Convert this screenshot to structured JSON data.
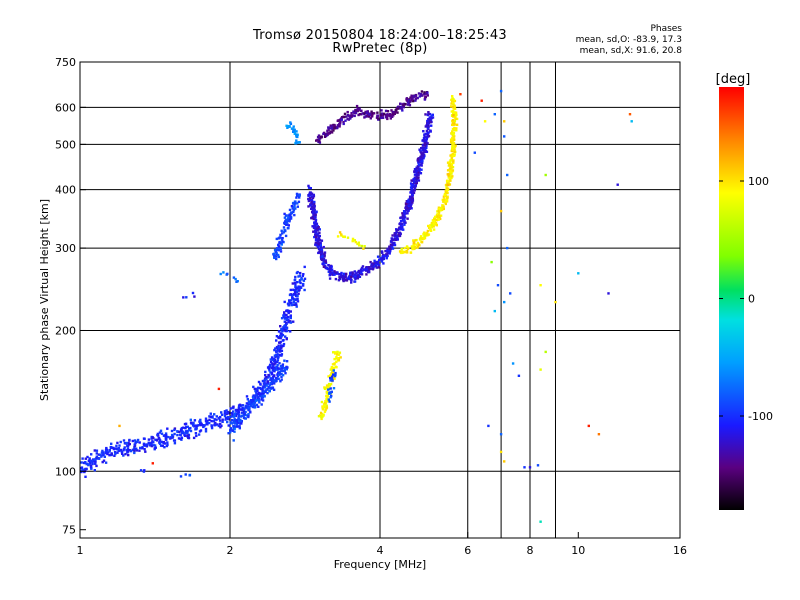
{
  "header": {
    "title": "Tromsø 20150804 18:24:00–18:25:43",
    "subtitle": "RwPretec (8p)"
  },
  "phase_info": {
    "label": "Phases",
    "o_line": "mean, sd,O: -83.9, 17.3",
    "x_line": "mean, sd,X:  91.6, 20.8"
  },
  "colorbar": {
    "unit": "[deg]",
    "tick_labels": [
      "100",
      "0",
      "-100"
    ],
    "tick_values": [
      100,
      0,
      -100
    ],
    "range": [
      -180,
      180
    ]
  },
  "chart_data": {
    "type": "scatter",
    "xlabel": "Frequency [MHz]",
    "ylabel": "Stationary phase Virtual Height [km]",
    "x_scale": "log",
    "y_scale": "log",
    "xlim": [
      1,
      16
    ],
    "ylim": [
      72,
      750
    ],
    "x_ticks": [
      1,
      2,
      4,
      6,
      8,
      10,
      16
    ],
    "x_tick_labels": [
      "1",
      "2",
      "4",
      "6",
      "8",
      "10",
      "16"
    ],
    "y_ticks": [
      75,
      100,
      200,
      300,
      400,
      500,
      600,
      750
    ],
    "y_tick_labels": [
      "75",
      "100",
      "200",
      "300",
      "400",
      "500",
      "600",
      "750"
    ],
    "grid": true,
    "grid_x": [
      2,
      4,
      6,
      7,
      8,
      9
    ],
    "grid_y": [
      100,
      200,
      300,
      400,
      500,
      600
    ],
    "color_by": "phase [deg]",
    "traces": [
      {
        "points": [
          [
            1.0,
            100
          ],
          [
            1.05,
            104
          ],
          [
            1.1,
            108
          ],
          [
            1.15,
            110
          ],
          [
            1.2,
            112
          ],
          [
            1.3,
            113
          ],
          [
            1.4,
            115
          ],
          [
            1.5,
            118
          ],
          [
            1.6,
            121
          ],
          [
            1.7,
            124
          ],
          [
            1.8,
            127
          ],
          [
            1.9,
            129
          ],
          [
            2.0,
            132
          ],
          [
            2.1,
            136
          ],
          [
            2.2,
            140
          ],
          [
            2.3,
            148
          ],
          [
            2.4,
            158
          ],
          [
            2.45,
            168
          ],
          [
            2.5,
            180
          ],
          [
            2.55,
            195
          ],
          [
            2.6,
            210
          ],
          [
            2.65,
            225
          ],
          [
            2.7,
            240
          ],
          [
            2.75,
            252
          ],
          [
            2.8,
            262
          ]
        ],
        "phase": -105,
        "spread": 0.06,
        "dens": 7
      },
      {
        "points": [
          [
            2.0,
            120
          ],
          [
            2.1,
            130
          ],
          [
            2.2,
            138
          ],
          [
            2.3,
            145
          ],
          [
            2.4,
            150
          ],
          [
            2.5,
            160
          ],
          [
            2.6,
            170
          ]
        ],
        "phase": -95,
        "spread": 0.05,
        "dens": 6
      },
      {
        "points": [
          [
            2.45,
            285
          ],
          [
            2.5,
            300
          ],
          [
            2.55,
            320
          ],
          [
            2.6,
            340
          ],
          [
            2.7,
            370
          ],
          [
            2.75,
            390
          ]
        ],
        "phase": -95,
        "spread": 0.04,
        "dens": 5
      },
      {
        "points": [
          [
            2.6,
            560
          ],
          [
            2.7,
            530
          ],
          [
            2.75,
            500
          ]
        ],
        "phase": -60,
        "spread": 0.03,
        "dens": 4
      },
      {
        "points": [
          [
            2.9,
            400
          ],
          [
            2.95,
            350
          ],
          [
            3.0,
            310
          ],
          [
            3.1,
            280
          ],
          [
            3.2,
            265
          ],
          [
            3.4,
            258
          ],
          [
            3.6,
            262
          ],
          [
            3.8,
            270
          ],
          [
            4.0,
            282
          ],
          [
            4.2,
            300
          ],
          [
            4.4,
            330
          ],
          [
            4.6,
            380
          ],
          [
            4.8,
            450
          ],
          [
            4.95,
            520
          ],
          [
            5.05,
            580
          ]
        ],
        "phase": -120,
        "spread": 0.035,
        "dens": 8
      },
      {
        "points": [
          [
            3.0,
            510
          ],
          [
            3.2,
            540
          ],
          [
            3.4,
            570
          ],
          [
            3.6,
            590
          ],
          [
            3.75,
            580
          ],
          [
            4.2,
            575
          ],
          [
            4.5,
            615
          ],
          [
            4.8,
            635
          ],
          [
            5.0,
            640
          ]
        ],
        "phase": -140,
        "spread": 0.03,
        "dens": 6
      },
      {
        "points": [
          [
            3.3,
            320
          ],
          [
            3.5,
            315
          ],
          [
            3.7,
            300
          ]
        ],
        "phase": 90,
        "spread": 0.02,
        "dens": 2
      },
      {
        "points": [
          [
            4.4,
            295
          ],
          [
            4.6,
            300
          ],
          [
            4.8,
            310
          ],
          [
            5.0,
            325
          ],
          [
            5.2,
            345
          ],
          [
            5.4,
            375
          ],
          [
            5.5,
            420
          ],
          [
            5.6,
            480
          ],
          [
            5.65,
            560
          ],
          [
            5.6,
            630
          ]
        ],
        "phase": 95,
        "spread": 0.03,
        "dens": 6
      },
      {
        "points": [
          [
            3.05,
            130
          ],
          [
            3.1,
            140
          ],
          [
            3.15,
            150
          ],
          [
            3.2,
            160
          ],
          [
            3.25,
            170
          ],
          [
            3.3,
            180
          ]
        ],
        "phase": 90,
        "spread": 0.04,
        "dens": 5
      },
      {
        "points": [
          [
            3.15,
            140
          ],
          [
            3.2,
            155
          ],
          [
            3.25,
            165
          ]
        ],
        "phase": -90,
        "spread": 0.03,
        "dens": 2
      },
      {
        "points": [
          [
            1.3,
            99
          ],
          [
            1.35,
            101
          ]
        ],
        "phase": -105,
        "spread": 0.02,
        "dens": 1
      },
      {
        "points": [
          [
            1.6,
            98
          ],
          [
            1.7,
            99
          ]
        ],
        "phase": -95,
        "spread": 0.02,
        "dens": 1
      },
      {
        "points": [
          [
            1.6,
            235
          ],
          [
            1.7,
            238
          ]
        ],
        "phase": -110,
        "spread": 0.02,
        "dens": 1
      },
      {
        "points": [
          [
            1.9,
            270
          ],
          [
            2.0,
            260
          ],
          [
            2.1,
            255
          ]
        ],
        "phase": -75,
        "spread": 0.02,
        "dens": 1
      }
    ],
    "scatter_points": [
      [
        6.5,
        560,
        90
      ],
      [
        6.8,
        580,
        -80
      ],
      [
        7.0,
        650,
        -80
      ],
      [
        7.1,
        560,
        110
      ],
      [
        7.1,
        520,
        -85
      ],
      [
        7.2,
        430,
        -80
      ],
      [
        6.2,
        480,
        -90
      ],
      [
        7.0,
        360,
        110
      ],
      [
        7.2,
        300,
        -80
      ],
      [
        6.9,
        250,
        -90
      ],
      [
        7.1,
        230,
        -60
      ],
      [
        6.8,
        220,
        -40
      ],
      [
        7.3,
        240,
        -90
      ],
      [
        6.7,
        280,
        40
      ],
      [
        7.0,
        120,
        -80
      ],
      [
        7.0,
        110,
        100
      ],
      [
        7.1,
        105,
        110
      ],
      [
        6.6,
        125,
        -100
      ],
      [
        7.4,
        170,
        -60
      ],
      [
        7.6,
        160,
        -100
      ],
      [
        7.8,
        102,
        -100
      ],
      [
        8.0,
        102,
        -120
      ],
      [
        8.3,
        103,
        -90
      ],
      [
        8.4,
        250,
        90
      ],
      [
        8.6,
        430,
        50
      ],
      [
        8.6,
        180,
        60
      ],
      [
        8.4,
        165,
        80
      ],
      [
        8.4,
        78,
        -10
      ],
      [
        9.0,
        230,
        100
      ],
      [
        10.0,
        265,
        -40
      ],
      [
        11.5,
        240,
        -120
      ],
      [
        11.0,
        120,
        140
      ],
      [
        12.0,
        410,
        -120
      ],
      [
        12.7,
        580,
        150
      ],
      [
        12.8,
        560,
        -40
      ],
      [
        10.5,
        125,
        170
      ],
      [
        6.4,
        620,
        170
      ],
      [
        5.8,
        640,
        160
      ],
      [
        1.9,
        150,
        170
      ],
      [
        1.4,
        104,
        170
      ],
      [
        1.2,
        125,
        120
      ]
    ]
  }
}
